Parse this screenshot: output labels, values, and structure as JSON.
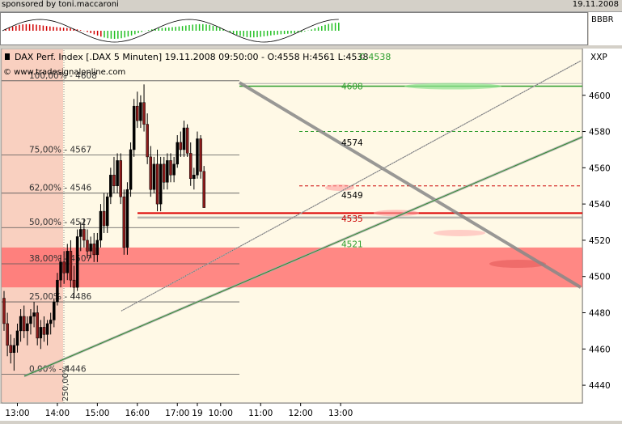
{
  "header": {
    "sponsor": "sponsored by toni.maccaroni",
    "date": "19.11.2008",
    "sub_label": "BBBR"
  },
  "chart_data": {
    "type": "candlestick",
    "title": "DAX Perf. Index [.DAX  5 Minuten] 19.11.2008 09:50:00 - O:4558 H:4561 L:4538",
    "close_label": "C:4538",
    "watermark": "www.tradesignalonline.com",
    "yaxis_label": "XXP",
    "ylim": [
      4432,
      4624
    ],
    "yticks": [
      4440,
      4460,
      4480,
      4500,
      4520,
      4540,
      4560,
      4580,
      4600
    ],
    "xticks": [
      {
        "label": "13:00",
        "i": 4
      },
      {
        "label": "14:00",
        "i": 16
      },
      {
        "label": "15:00",
        "i": 28
      },
      {
        "label": "16:00",
        "i": 40
      },
      {
        "label": "17:00",
        "i": 52
      },
      {
        "label": "19",
        "i": 58
      },
      {
        "label": "10:00",
        "i": 65
      },
      {
        "label": "11:00",
        "i": 77
      },
      {
        "label": "12:00",
        "i": 89
      },
      {
        "label": "13:00",
        "i": 101
      }
    ],
    "fib_levels": [
      {
        "label": "100,00% - 4608",
        "value": 4608
      },
      {
        "label": "75,00% - 4567",
        "value": 4567
      },
      {
        "label": "62,00% - 4546",
        "value": 4546
      },
      {
        "label": "50,00% - 4527",
        "value": 4527
      },
      {
        "label": "38,00% - 4507",
        "value": 4507
      },
      {
        "label": "25,00% - 4486",
        "value": 4486
      },
      {
        "label": "0,00% - 4446",
        "value": 4446
      }
    ],
    "level_labels": [
      {
        "label": "4608",
        "value": 4605,
        "color": "#2e9e2e"
      },
      {
        "label": "4574",
        "value": 4574,
        "color": "#000000"
      },
      {
        "label": "4549",
        "value": 4545,
        "color": "#000000"
      },
      {
        "label": "4535",
        "value": 4532,
        "color": "#cc0000"
      },
      {
        "label": "4521",
        "value": 4518,
        "color": "#2e9e2e"
      }
    ],
    "vertical_label": "250,00%",
    "candles": [
      [
        4488,
        4492,
        4470,
        4474
      ],
      [
        4474,
        4480,
        4456,
        4462
      ],
      [
        4462,
        4468,
        4452,
        4458
      ],
      [
        4458,
        4466,
        4448,
        4462
      ],
      [
        4462,
        4474,
        4458,
        4470
      ],
      [
        4470,
        4482,
        4464,
        4478
      ],
      [
        4478,
        4484,
        4466,
        4470
      ],
      [
        4470,
        4478,
        4462,
        4474
      ],
      [
        4474,
        4482,
        4468,
        4478
      ],
      [
        4478,
        4486,
        4472,
        4480
      ],
      [
        4480,
        4484,
        4462,
        4466
      ],
      [
        4466,
        4476,
        4460,
        4472
      ],
      [
        4472,
        4478,
        4464,
        4468
      ],
      [
        4468,
        4476,
        4462,
        4474
      ],
      [
        4474,
        4480,
        4468,
        4476
      ],
      [
        4476,
        4488,
        4472,
        4486
      ],
      [
        4486,
        4502,
        4484,
        4498
      ],
      [
        4498,
        4512,
        4494,
        4508
      ],
      [
        4508,
        4514,
        4496,
        4502
      ],
      [
        4502,
        4518,
        4498,
        4514
      ],
      [
        4514,
        4520,
        4494,
        4498
      ],
      [
        4498,
        4506,
        4488,
        4494
      ],
      [
        4494,
        4526,
        4492,
        4522
      ],
      [
        4522,
        4530,
        4514,
        4526
      ],
      [
        4526,
        4532,
        4516,
        4520
      ],
      [
        4520,
        4526,
        4510,
        4514
      ],
      [
        4514,
        4522,
        4510,
        4518
      ],
      [
        4518,
        4524,
        4508,
        4512
      ],
      [
        4512,
        4524,
        4508,
        4520
      ],
      [
        4520,
        4540,
        4516,
        4536
      ],
      [
        4536,
        4546,
        4524,
        4528
      ],
      [
        4528,
        4546,
        4524,
        4544
      ],
      [
        4544,
        4560,
        4540,
        4556
      ],
      [
        4556,
        4566,
        4546,
        4550
      ],
      [
        4550,
        4568,
        4546,
        4564
      ],
      [
        4564,
        4568,
        4540,
        4544
      ],
      [
        4544,
        4548,
        4512,
        4516
      ],
      [
        4516,
        4552,
        4512,
        4548
      ],
      [
        4548,
        4574,
        4544,
        4570
      ],
      [
        4570,
        4598,
        4566,
        4594
      ],
      [
        4594,
        4602,
        4582,
        4586
      ],
      [
        4586,
        4600,
        4582,
        4596
      ],
      [
        4596,
        4606,
        4580,
        4584
      ],
      [
        4584,
        4590,
        4562,
        4566
      ],
      [
        4566,
        4572,
        4544,
        4548
      ],
      [
        4548,
        4566,
        4546,
        4562
      ],
      [
        4562,
        4570,
        4536,
        4540
      ],
      [
        4540,
        4566,
        4536,
        4562
      ],
      [
        4562,
        4566,
        4548,
        4552
      ],
      [
        4552,
        4568,
        4548,
        4564
      ],
      [
        4564,
        4568,
        4552,
        4556
      ],
      [
        4556,
        4566,
        4552,
        4562
      ],
      [
        4562,
        4578,
        4560,
        4574
      ],
      [
        4574,
        4580,
        4566,
        4570
      ],
      [
        4570,
        4586,
        4566,
        4582
      ],
      [
        4582,
        4584,
        4566,
        4568
      ],
      [
        4568,
        4574,
        4550,
        4554
      ],
      [
        4554,
        4560,
        4548,
        4556
      ],
      [
        4556,
        4580,
        4554,
        4576
      ],
      [
        4576,
        4578,
        4554,
        4558
      ],
      [
        4558,
        4561,
        4538,
        4538
      ]
    ]
  }
}
